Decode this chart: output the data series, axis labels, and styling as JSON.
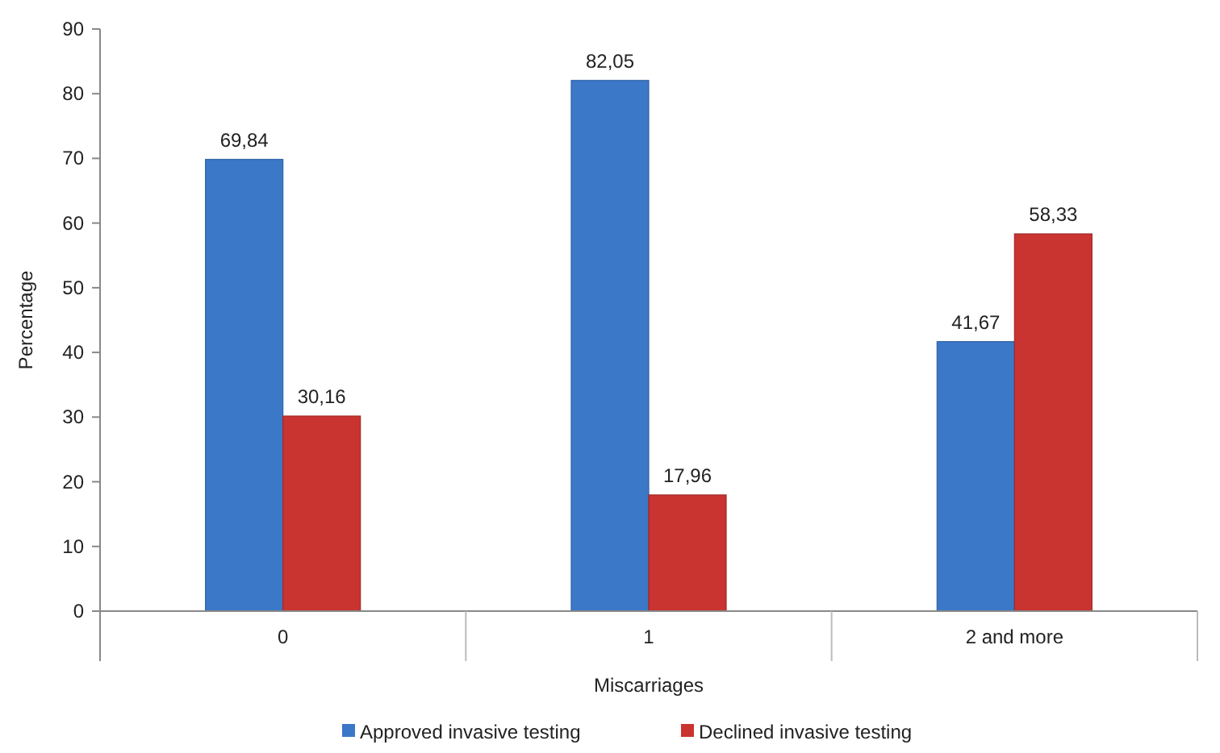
{
  "chart_data": {
    "type": "bar",
    "xlabel": "Miscarriages",
    "ylabel": "Percentage",
    "categories": [
      "0",
      "1",
      "2 and more"
    ],
    "series": [
      {
        "name": "Approved invasive testing",
        "color": "#3b78c8",
        "values": [
          69.84,
          82.05,
          41.67
        ],
        "value_labels": [
          "69,84",
          "82,05",
          "41,67"
        ]
      },
      {
        "name": "Declined invasive testing",
        "color": "#c93330",
        "values": [
          30.16,
          17.96,
          58.33
        ],
        "value_labels": [
          "30,16",
          "17,96",
          "58,33"
        ]
      }
    ],
    "ylim": [
      0,
      90
    ],
    "yticks": [
      0,
      10,
      20,
      30,
      40,
      50,
      60,
      70,
      80,
      90
    ],
    "grid": false,
    "legend": "bottom"
  }
}
